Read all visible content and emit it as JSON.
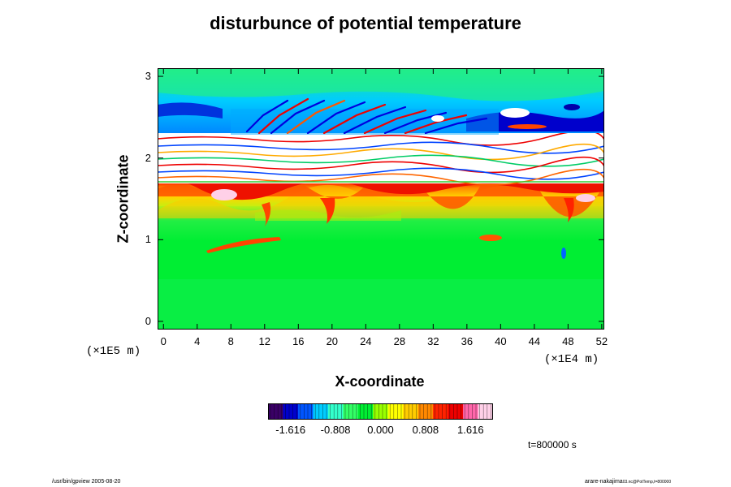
{
  "title": "disturbunce of potential temperature",
  "x_scale_label": "(×1E4 m)",
  "z_scale_label": "(×1E5 m)",
  "timestamp": "t=800000 s",
  "footer_left": "/usr/bin/gpview 2005-08-20",
  "footer_right_main": "arare-nakajima",
  "footer_right_sub": "03.nc@PotTemp,t=800000",
  "chart_data": {
    "type": "heatmap",
    "title": "disturbunce of potential temperature",
    "xlabel": "X-coordinate",
    "ylabel": "Z-coordinate",
    "xlim": [
      -0.7,
      52.3
    ],
    "ylim": [
      -0.1,
      3.1
    ],
    "x_ticks": [
      "0",
      "4",
      "8",
      "12",
      "16",
      "20",
      "24",
      "28",
      "32",
      "36",
      "40",
      "44",
      "48",
      "52"
    ],
    "y_ticks": [
      "0",
      "1",
      "2",
      "3"
    ],
    "colorbar": {
      "ticks": [
        "-1.616",
        "-0.808",
        "0.000",
        "0.808",
        "1.616"
      ],
      "tick_values": [
        -1.616,
        -0.808,
        0.0,
        0.808,
        1.616
      ],
      "range": [
        -2.02,
        2.02
      ],
      "colors": [
        "#3a0066",
        "#0000cc",
        "#0055ff",
        "#00ccff",
        "#33ffcc",
        "#33ff66",
        "#00ee33",
        "#99ff00",
        "#ffff00",
        "#ffcc00",
        "#ff8800",
        "#ff2200",
        "#ee0000",
        "#ff66aa",
        "#ffd0e8"
      ]
    },
    "regions": [
      {
        "z_range": [
          0.0,
          0.9
        ],
        "value": 0.0
      },
      {
        "z_range": [
          0.9,
          1.3
        ],
        "value": 0.45
      },
      {
        "z_range": [
          1.3,
          1.6
        ],
        "value": 1.0
      },
      {
        "z_range": [
          1.6,
          1.7
        ],
        "value": 1.7
      },
      {
        "z_range": [
          1.7,
          2.3
        ],
        "value": "oscillating"
      },
      {
        "z_range": [
          2.3,
          2.8
        ],
        "value": -0.7
      },
      {
        "z_range": [
          2.8,
          3.0
        ],
        "value": -0.2
      }
    ]
  }
}
